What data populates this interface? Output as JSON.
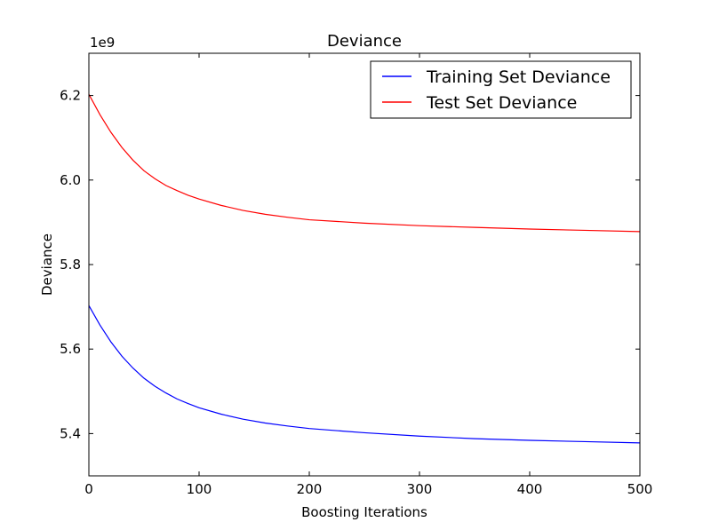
{
  "chart_data": {
    "type": "line",
    "title": "Deviance",
    "xlabel": "Boosting Iterations",
    "ylabel": "Deviance",
    "y_offset_label": "1e9",
    "xlim": [
      0,
      500
    ],
    "ylim": [
      5.3,
      6.3
    ],
    "xticks": [
      0,
      100,
      200,
      300,
      400,
      500
    ],
    "xtick_labels": [
      "0",
      "100",
      "200",
      "300",
      "400",
      "500"
    ],
    "yticks": [
      5.4,
      5.6,
      5.8,
      6.0,
      6.2
    ],
    "ytick_labels": [
      "5.4",
      "5.6",
      "5.8",
      "6.0",
      "6.2"
    ],
    "grid": false,
    "legend_position": "top-right",
    "x": [
      0,
      10,
      20,
      30,
      40,
      50,
      60,
      70,
      80,
      90,
      100,
      120,
      140,
      160,
      180,
      200,
      250,
      300,
      350,
      400,
      450,
      500
    ],
    "series": [
      {
        "name": "Training Set Deviance",
        "color": "#0000ff",
        "values": [
          5.703,
          5.657,
          5.617,
          5.583,
          5.555,
          5.531,
          5.512,
          5.496,
          5.482,
          5.471,
          5.461,
          5.446,
          5.434,
          5.425,
          5.418,
          5.412,
          5.402,
          5.394,
          5.388,
          5.384,
          5.381,
          5.378
        ]
      },
      {
        "name": "Test Set Deviance",
        "color": "#ff0000",
        "values": [
          6.203,
          6.155,
          6.113,
          6.077,
          6.047,
          6.022,
          6.003,
          5.987,
          5.975,
          5.964,
          5.955,
          5.94,
          5.928,
          5.919,
          5.912,
          5.906,
          5.898,
          5.892,
          5.888,
          5.884,
          5.881,
          5.878
        ]
      }
    ]
  }
}
